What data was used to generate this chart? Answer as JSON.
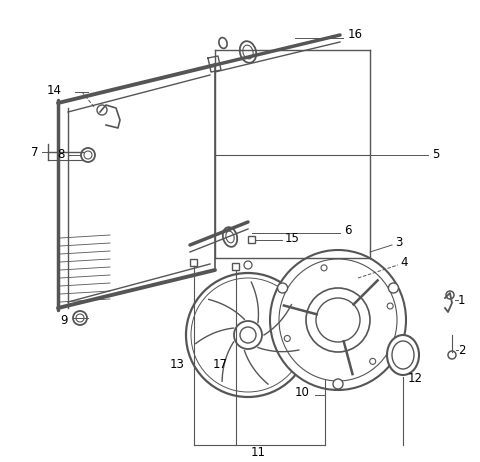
{
  "bg_color": "#ffffff",
  "line_color": "#555555",
  "label_color": "#000000",
  "fig_w": 4.8,
  "fig_h": 4.62,
  "dpi": 100
}
